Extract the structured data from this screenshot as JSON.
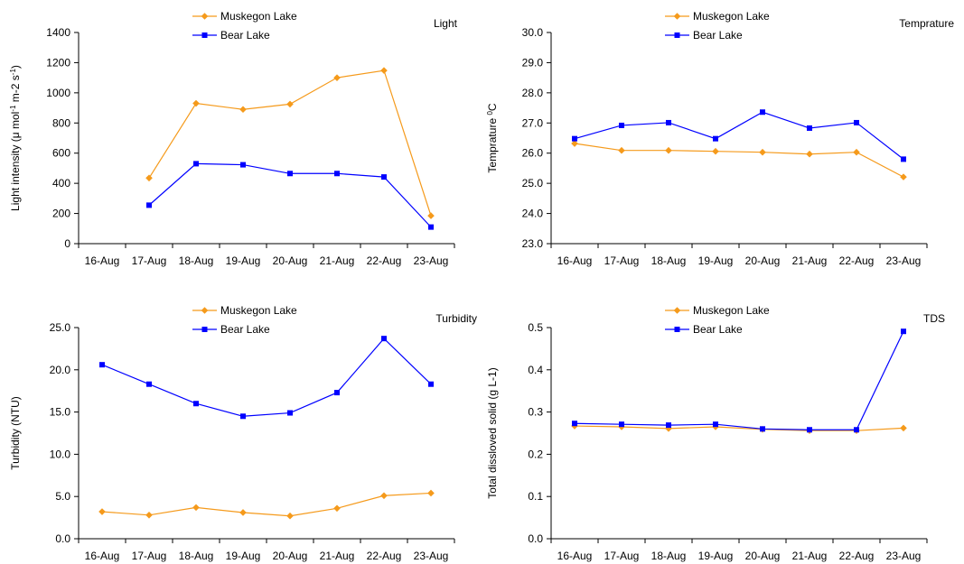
{
  "colors": {
    "muskegon": "#f59a1b",
    "bear": "#0000ff",
    "axis": "#000000"
  },
  "chart_data": [
    {
      "type": "line",
      "title": "Light",
      "ylabel": "Light intensity (μ mol¹ m-2 s¹)",
      "ylabel_parts": [
        "Light intensity (μ mol",
        "-1",
        " m-2 s",
        "-1",
        ")"
      ],
      "xlabel": "",
      "categories": [
        "16-Aug",
        "17-Aug",
        "18-Aug",
        "19-Aug",
        "20-Aug",
        "21-Aug",
        "22-Aug",
        "23-Aug"
      ],
      "ylim": [
        0,
        1400
      ],
      "yticks": [
        0,
        200,
        400,
        600,
        800,
        1000,
        1200,
        1400
      ],
      "ytick_labels": [
        "0",
        "200",
        "400",
        "600",
        "800",
        "1000",
        "1200",
        "1400"
      ],
      "legend": "top-center",
      "grid": false,
      "series": [
        {
          "name": "Muskegon Lake",
          "marker": "diamond",
          "values": [
            null,
            435,
            930,
            890,
            925,
            1100,
            1148,
            185
          ]
        },
        {
          "name": "Bear Lake",
          "marker": "square",
          "values": [
            null,
            255,
            530,
            523,
            465,
            465,
            442,
            110
          ]
        }
      ]
    },
    {
      "type": "line",
      "title": "Temprature",
      "ylabel": "Temprature °C",
      "ylabel_parts": [
        "Temprature ",
        "0",
        "C"
      ],
      "xlabel": "",
      "categories": [
        "16-Aug",
        "17-Aug",
        "18-Aug",
        "19-Aug",
        "20-Aug",
        "21-Aug",
        "22-Aug",
        "23-Aug"
      ],
      "ylim": [
        23,
        30
      ],
      "yticks": [
        23,
        24,
        25,
        26,
        27,
        28,
        29,
        30
      ],
      "ytick_labels": [
        "23.0",
        "24.0",
        "25.0",
        "26.0",
        "27.0",
        "28.0",
        "29.0",
        "30.0"
      ],
      "legend": "top-center",
      "grid": false,
      "series": [
        {
          "name": "Muskegon Lake",
          "marker": "diamond",
          "values": [
            26.32,
            26.09,
            26.09,
            26.06,
            26.03,
            25.97,
            26.03,
            25.21
          ]
        },
        {
          "name": "Bear Lake",
          "marker": "square",
          "values": [
            26.48,
            26.92,
            27.01,
            26.48,
            27.36,
            26.83,
            27.01,
            25.8
          ]
        }
      ]
    },
    {
      "type": "line",
      "title": "Turbidity",
      "ylabel": "Turbidity (NTU)",
      "ylabel_parts": [
        "Turbidity (NTU)"
      ],
      "xlabel": "",
      "categories": [
        "16-Aug",
        "17-Aug",
        "18-Aug",
        "19-Aug",
        "20-Aug",
        "21-Aug",
        "22-Aug",
        "23-Aug"
      ],
      "ylim": [
        0,
        25
      ],
      "yticks": [
        0,
        5,
        10,
        15,
        20,
        25
      ],
      "ytick_labels": [
        "0.0",
        "5.0",
        "10.0",
        "15.0",
        "20.0",
        "25.0"
      ],
      "legend": "top-center",
      "grid": false,
      "series": [
        {
          "name": "Muskegon Lake",
          "marker": "diamond",
          "values": [
            3.2,
            2.8,
            3.7,
            3.1,
            2.7,
            3.6,
            5.1,
            5.4
          ]
        },
        {
          "name": "Bear Lake",
          "marker": "square",
          "values": [
            20.6,
            18.3,
            16.0,
            14.5,
            14.9,
            17.3,
            23.7,
            18.3
          ]
        }
      ]
    },
    {
      "type": "line",
      "title": "TDS",
      "ylabel": "Total dissloved solid (g L-1)",
      "ylabel_parts": [
        "Total dissloved solid (g L-1)"
      ],
      "xlabel": "",
      "categories": [
        "16-Aug",
        "17-Aug",
        "18-Aug",
        "19-Aug",
        "20-Aug",
        "21-Aug",
        "22-Aug",
        "23-Aug"
      ],
      "ylim": [
        0,
        0.5
      ],
      "yticks": [
        0,
        0.1,
        0.2,
        0.3,
        0.4,
        0.5
      ],
      "ytick_labels": [
        "0.0",
        "0.1",
        "0.2",
        "0.3",
        "0.4",
        "0.5"
      ],
      "legend": "top-center",
      "grid": false,
      "series": [
        {
          "name": "Muskegon Lake",
          "marker": "diamond",
          "values": [
            0.267,
            0.265,
            0.261,
            0.265,
            0.259,
            0.256,
            0.256,
            0.262
          ]
        },
        {
          "name": "Bear Lake",
          "marker": "square",
          "values": [
            0.273,
            0.271,
            0.269,
            0.271,
            0.26,
            0.258,
            0.258,
            0.491
          ]
        }
      ]
    }
  ]
}
